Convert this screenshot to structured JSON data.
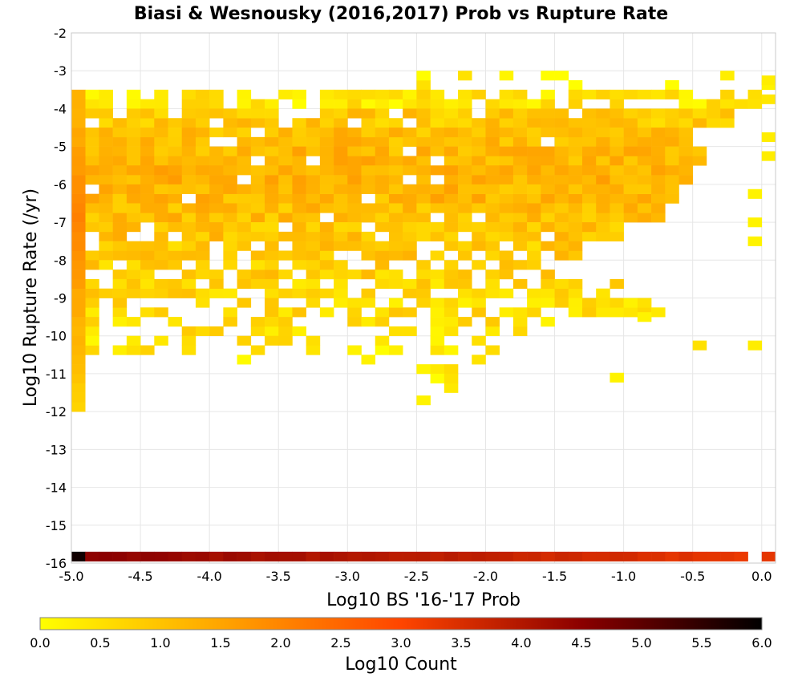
{
  "chart_data": {
    "type": "heatmap",
    "title": "Biasi & Wesnousky (2016,2017) Prob vs Rupture Rate",
    "xlabel": "Log10 BS '16-'17 Prob",
    "ylabel": "Log10 Rupture Rate (/yr)",
    "xlim": [
      -5.0,
      0.1
    ],
    "ylim": [
      -16,
      -2
    ],
    "x_ticks": [
      "-5.0",
      "-4.5",
      "-4.0",
      "-3.5",
      "-3.0",
      "-2.5",
      "-2.0",
      "-1.5",
      "-1.0",
      "-0.5",
      "0.0"
    ],
    "y_ticks": [
      "-2",
      "-3",
      "-4",
      "-5",
      "-6",
      "-7",
      "-8",
      "-9",
      "-10",
      "-11",
      "-12",
      "-13",
      "-14",
      "-15",
      "-16"
    ],
    "grid": true,
    "bin_size_x": 0.1,
    "bin_size_y": 0.25,
    "colorbar": {
      "label": "Log10 Count",
      "range": [
        0,
        6
      ],
      "ticks": [
        "0.0",
        "0.5",
        "1.0",
        "1.5",
        "2.0",
        "2.5",
        "3.0",
        "3.5",
        "4.0",
        "4.5",
        "5.0",
        "5.5",
        "6.0"
      ],
      "colors": [
        "#ffff00",
        "#ffa500",
        "#ff4500",
        "#8b0000",
        "#000000"
      ]
    },
    "density_rows": [
      {
        "y": -3.5,
        "x_range": [
          -2.5,
          0.1
        ],
        "value": 0.2,
        "fill": 0.2
      },
      {
        "y": -4.0,
        "x_range": [
          -5.0,
          0.0
        ],
        "value": 0.4,
        "fill": 0.7
      },
      {
        "y": -4.5,
        "x_range": [
          -5.0,
          -0.2
        ],
        "value": 0.9,
        "fill": 0.9
      },
      {
        "y": -5.0,
        "x_range": [
          -5.0,
          -0.5
        ],
        "value": 1.1,
        "fill": 0.95
      },
      {
        "y": -5.5,
        "x_range": [
          -5.0,
          -0.4
        ],
        "value": 1.2,
        "fill": 0.97
      },
      {
        "y": -6.0,
        "x_range": [
          -5.0,
          -0.5
        ],
        "value": 1.3,
        "fill": 0.98
      },
      {
        "y": -6.5,
        "x_range": [
          -5.0,
          -0.6
        ],
        "value": 1.2,
        "fill": 0.95
      },
      {
        "y": -7.0,
        "x_range": [
          -5.0,
          -0.7
        ],
        "value": 1.1,
        "fill": 0.9
      },
      {
        "y": -7.5,
        "x_range": [
          -5.0,
          -1.0
        ],
        "value": 1.0,
        "fill": 0.85
      },
      {
        "y": -8.0,
        "x_range": [
          -5.0,
          -1.3
        ],
        "value": 0.9,
        "fill": 0.8
      },
      {
        "y": -8.5,
        "x_range": [
          -5.0,
          -1.5
        ],
        "value": 0.8,
        "fill": 0.75
      },
      {
        "y": -9.0,
        "x_range": [
          -5.0,
          -1.0
        ],
        "value": 0.7,
        "fill": 0.7
      },
      {
        "y": -9.5,
        "x_range": [
          -5.0,
          -0.7
        ],
        "value": 0.6,
        "fill": 0.6
      },
      {
        "y": -10.0,
        "x_range": [
          -5.0,
          -1.5
        ],
        "value": 0.5,
        "fill": 0.5
      },
      {
        "y": -10.5,
        "x_range": [
          -5.0,
          -1.7
        ],
        "value": 0.4,
        "fill": 0.35
      },
      {
        "y": -11.0,
        "x_range": [
          -4.9,
          -1.0
        ],
        "value": 0.3,
        "fill": 0.12
      },
      {
        "y": -11.5,
        "x_range": [
          -2.5,
          -2.2
        ],
        "value": 0.2,
        "fill": 0.3
      }
    ],
    "left_edge_column": {
      "x": -4.95,
      "y_range": [
        -12.0,
        -3.5
      ],
      "value": 2.0
    },
    "bottom_row": {
      "y": -15.95,
      "x_range": [
        -5.0,
        0.1
      ],
      "value": 4.5
    },
    "extra_cells": [
      {
        "x": -0.05,
        "y": -10.25,
        "value": 0.3
      },
      {
        "x": 0.05,
        "y": -3.25,
        "value": 0.3
      },
      {
        "x": 0.05,
        "y": -3.75,
        "value": 0.4
      },
      {
        "x": 0.05,
        "y": -4.75,
        "value": 0.3
      },
      {
        "x": 0.05,
        "y": -5.25,
        "value": 0.3
      },
      {
        "x": -0.05,
        "y": -6.25,
        "value": 0.2
      },
      {
        "x": -0.05,
        "y": -7.0,
        "value": 0.2
      },
      {
        "x": -0.05,
        "y": -7.5,
        "value": 0.2
      },
      {
        "x": -0.85,
        "y": -9.5,
        "value": 0.2
      },
      {
        "x": -0.45,
        "y": -10.25,
        "value": 0.5
      },
      {
        "x": -1.05,
        "y": -11.1,
        "value": 0.2
      },
      {
        "x": -2.45,
        "y": -11.7,
        "value": 0.2
      }
    ]
  }
}
